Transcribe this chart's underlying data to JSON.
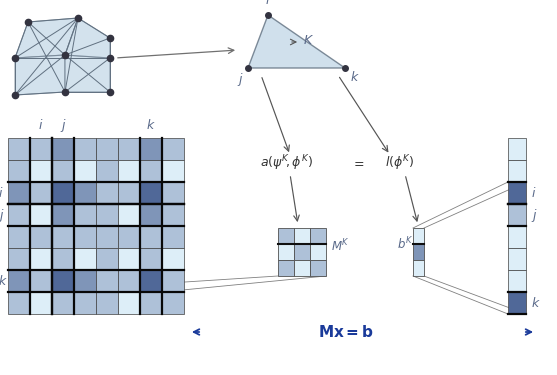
{
  "fig_width": 5.57,
  "fig_height": 3.75,
  "bg_color": "#ffffff",
  "light_blue": "#c5d9e8",
  "dark_blue": "#5870a0",
  "very_light_blue": "#ddeef8",
  "mesh_node_color": "#333340",
  "matrix_colors": [
    [
      1,
      1,
      2,
      1,
      1,
      1,
      2,
      1
    ],
    [
      1,
      0,
      1,
      0,
      1,
      0,
      1,
      0
    ],
    [
      2,
      1,
      3,
      2,
      1,
      1,
      3,
      1
    ],
    [
      1,
      0,
      2,
      1,
      1,
      0,
      2,
      1
    ],
    [
      1,
      1,
      1,
      1,
      1,
      1,
      1,
      1
    ],
    [
      1,
      0,
      1,
      0,
      1,
      0,
      1,
      0
    ],
    [
      2,
      1,
      3,
      2,
      1,
      1,
      3,
      1
    ],
    [
      1,
      0,
      1,
      1,
      1,
      0,
      1,
      1
    ]
  ],
  "vector_colors": [
    0,
    0,
    3,
    1,
    0,
    0,
    0,
    3
  ],
  "label_color": "#5a6a8a",
  "arrow_color": "#555555",
  "eq_text_color": "#333333",
  "mx_b_color": "#1a3a9a"
}
